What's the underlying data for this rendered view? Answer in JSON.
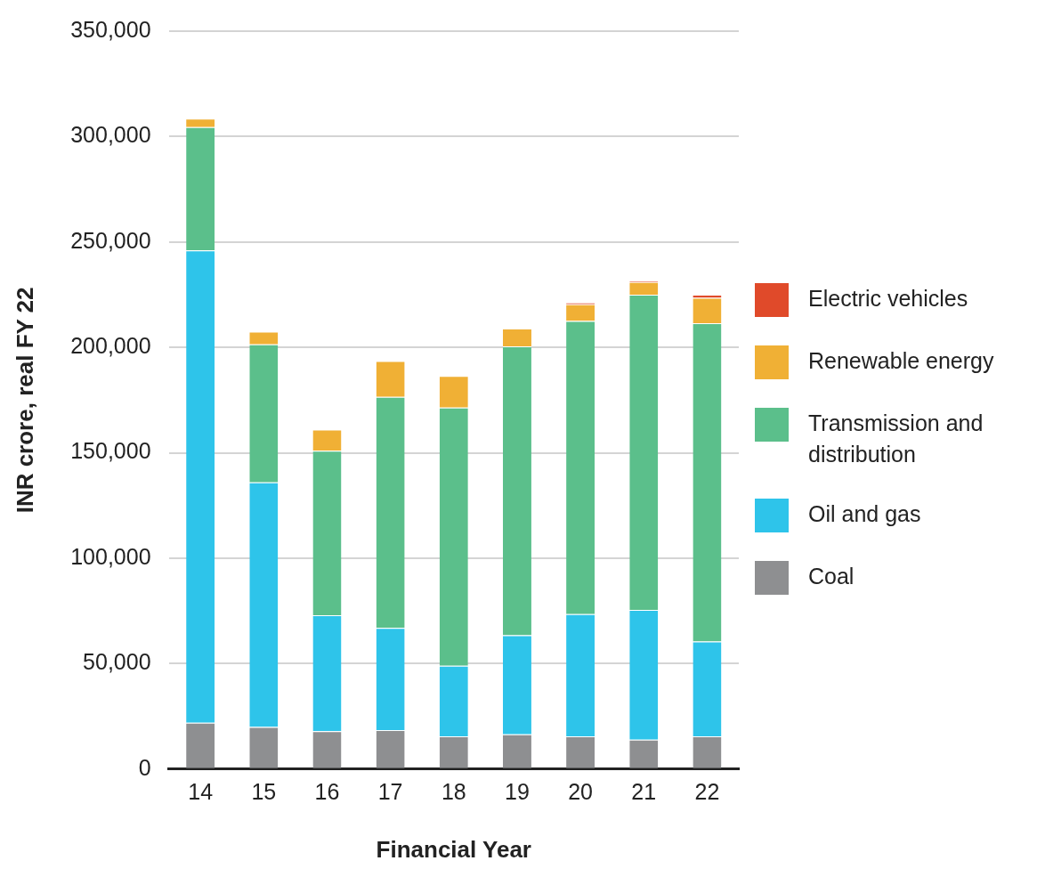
{
  "chart_data": {
    "type": "bar",
    "stacked": true,
    "xlabel": "Financial Year",
    "ylabel": "INR crore, real FY 22",
    "categories": [
      "14",
      "15",
      "16",
      "17",
      "18",
      "19",
      "20",
      "21",
      "22"
    ],
    "series": [
      {
        "name": "Coal",
        "color": "#8e8f91",
        "values": [
          22000,
          20000,
          18000,
          18500,
          15500,
          16500,
          15500,
          14000,
          15500
        ]
      },
      {
        "name": "Oil and gas",
        "color": "#2ec4ea",
        "values": [
          224000,
          116000,
          55000,
          48500,
          33500,
          47000,
          58000,
          61500,
          45000
        ]
      },
      {
        "name": "Transmission and distribution",
        "color": "#5bbf8b",
        "values": [
          58500,
          65500,
          78000,
          109500,
          122500,
          137000,
          139000,
          149500,
          151000
        ]
      },
      {
        "name": "Renewable energy",
        "color": "#f0b035",
        "values": [
          4000,
          6000,
          10000,
          17000,
          15000,
          8500,
          8000,
          6000,
          12000
        ]
      },
      {
        "name": "Electric vehicles",
        "color": "#e04a2a",
        "values": [
          0,
          0,
          0,
          0,
          0,
          0,
          800,
          700,
          1500
        ]
      }
    ],
    "ylim": [
      0,
      350000
    ],
    "yticks": [
      0,
      {
        "value": 50000,
        "label": "50,000"
      },
      {
        "value": 100000,
        "label": "100,000"
      },
      {
        "value": 150000,
        "label": "150,000"
      },
      {
        "value": 200000,
        "label": "200,000"
      },
      {
        "value": 250000,
        "label": "250,000"
      },
      {
        "value": 300000,
        "label": "300,000"
      },
      {
        "value": 350000,
        "label": "350,000"
      }
    ],
    "grid": "y",
    "legend": "right"
  }
}
